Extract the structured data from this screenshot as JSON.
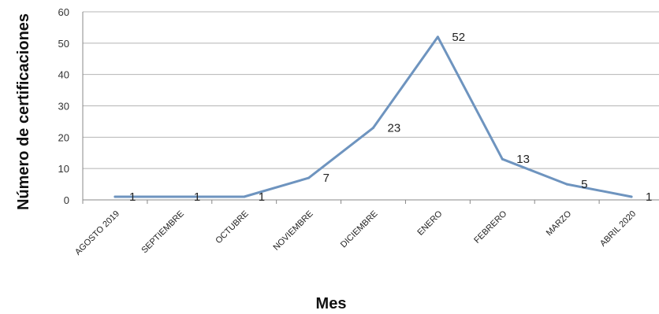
{
  "chart_data": {
    "type": "line",
    "title": "",
    "xlabel": "Mes",
    "ylabel": "Número de certificaciones",
    "categories": [
      "AGOSTO 2019",
      "SEPTIEMBRE",
      "OCTUBRE",
      "NOVIEMBRE",
      "DICIEMBRE",
      "ENERO",
      "FEBRERO",
      "MARZO",
      "ABRIL 2020"
    ],
    "series": [
      {
        "values": [
          1,
          1,
          1,
          7,
          23,
          52,
          13,
          5,
          1
        ]
      }
    ],
    "data_labels": [
      "1",
      "1",
      "1",
      "7",
      "23",
      "52",
      "13",
      "5",
      "1"
    ],
    "ylim": [
      0,
      60
    ],
    "yticks": [
      "0",
      "10",
      "20",
      "30",
      "40",
      "50",
      "60"
    ],
    "grid": true,
    "legend": "none",
    "colors": {
      "line": "#6e94bf",
      "grid": "#b5b5b5",
      "axis": "#888888"
    }
  }
}
